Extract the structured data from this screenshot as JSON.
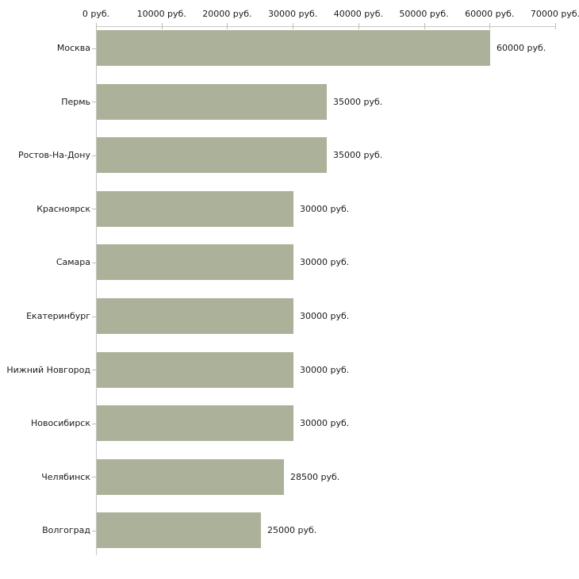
{
  "chart_data": {
    "type": "bar",
    "orientation": "horizontal",
    "title": "",
    "xlabel": "",
    "ylabel": "",
    "unit": "руб.",
    "xlim": [
      0,
      70000
    ],
    "grid": false,
    "legend": "none",
    "categories": [
      "Москва",
      "Пермь",
      "Ростов-На-Дону",
      "Красноярск",
      "Самара",
      "Екатеринбург",
      "Нижний Новгород",
      "Новосибирск",
      "Челябинск",
      "Волгоград"
    ],
    "values": [
      60000,
      35000,
      35000,
      30000,
      30000,
      30000,
      30000,
      30000,
      28500,
      25000
    ],
    "value_labels": [
      "60000 руб.",
      "35000 руб.",
      "35000 руб.",
      "30000 руб.",
      "30000 руб.",
      "30000 руб.",
      "30000 руб.",
      "30000 руб.",
      "28500 руб.",
      "25000 руб."
    ],
    "x_tick_values": [
      0,
      10000,
      20000,
      30000,
      40000,
      50000,
      60000,
      70000
    ],
    "x_tick_labels": [
      "0 руб.",
      "10000 руб.",
      "20000 руб.",
      "30000 руб.",
      "40000 руб.",
      "50000 руб.",
      "60000 руб.",
      "70000 руб."
    ],
    "colors": {
      "bar": "#acb29a",
      "axis": "#c6c6c6",
      "tick": "#c2c2a2",
      "text": "#1a1a1a",
      "background": "#ffffff"
    }
  }
}
